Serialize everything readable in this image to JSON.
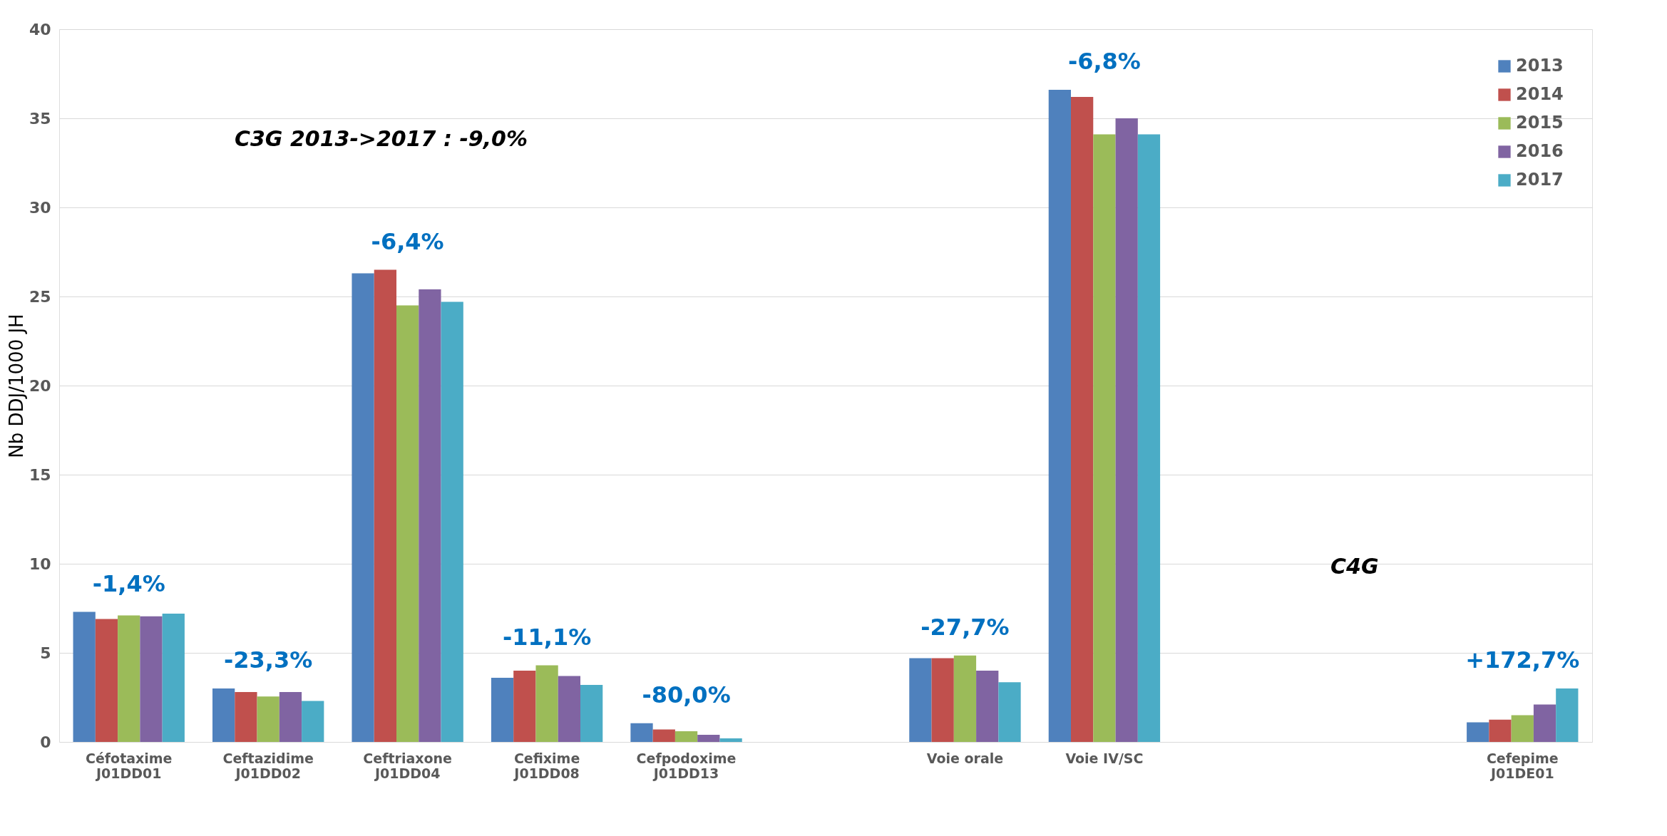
{
  "chart_data": {
    "type": "bar",
    "ylabel": "Nb DDJ/1000 JH",
    "categories": [
      "Céfotaxime\nJ01DD01",
      "Ceftazidime\nJ01DD02",
      "Ceftriaxone\nJ01DD04",
      "Cefixime\nJ01DD08",
      "Cefpodoxime\nJ01DD13",
      null,
      "Voie orale",
      "Voie IV/SC",
      null,
      null,
      "Cefepime\nJ01DE01"
    ],
    "series": [
      {
        "name": "2013",
        "color": "#4f81bd",
        "values": [
          7.3,
          3.0,
          26.3,
          3.6,
          1.05,
          null,
          4.7,
          36.6,
          null,
          null,
          1.1
        ]
      },
      {
        "name": "2014",
        "color": "#c0504d",
        "values": [
          6.9,
          2.8,
          26.5,
          4.0,
          0.7,
          null,
          4.7,
          36.2,
          null,
          null,
          1.25
        ]
      },
      {
        "name": "2015",
        "color": "#9bbb59",
        "values": [
          7.1,
          2.55,
          24.5,
          4.3,
          0.6,
          null,
          4.85,
          34.1,
          null,
          null,
          1.5
        ]
      },
      {
        "name": "2016",
        "color": "#8064a2",
        "values": [
          7.05,
          2.8,
          25.4,
          3.7,
          0.4,
          null,
          4.0,
          35.0,
          null,
          null,
          2.1
        ]
      },
      {
        "name": "2017",
        "color": "#4bacc6",
        "values": [
          7.2,
          2.3,
          24.7,
          3.2,
          0.2,
          null,
          3.35,
          34.1,
          null,
          null,
          3.0
        ]
      }
    ],
    "ylim": [
      0,
      40
    ],
    "yticks": [
      0,
      5,
      10,
      15,
      20,
      25,
      30,
      35,
      40
    ],
    "grid": "y",
    "legend": "top right",
    "annotations": [
      "-1,4%",
      "-23,3%",
      "-6,4%",
      "-11,1%",
      "-80,0%",
      "-27,7%",
      "-6,8%",
      "+172,7%",
      "C3G 2013->2017 : -9,0%",
      "C4G"
    ]
  }
}
